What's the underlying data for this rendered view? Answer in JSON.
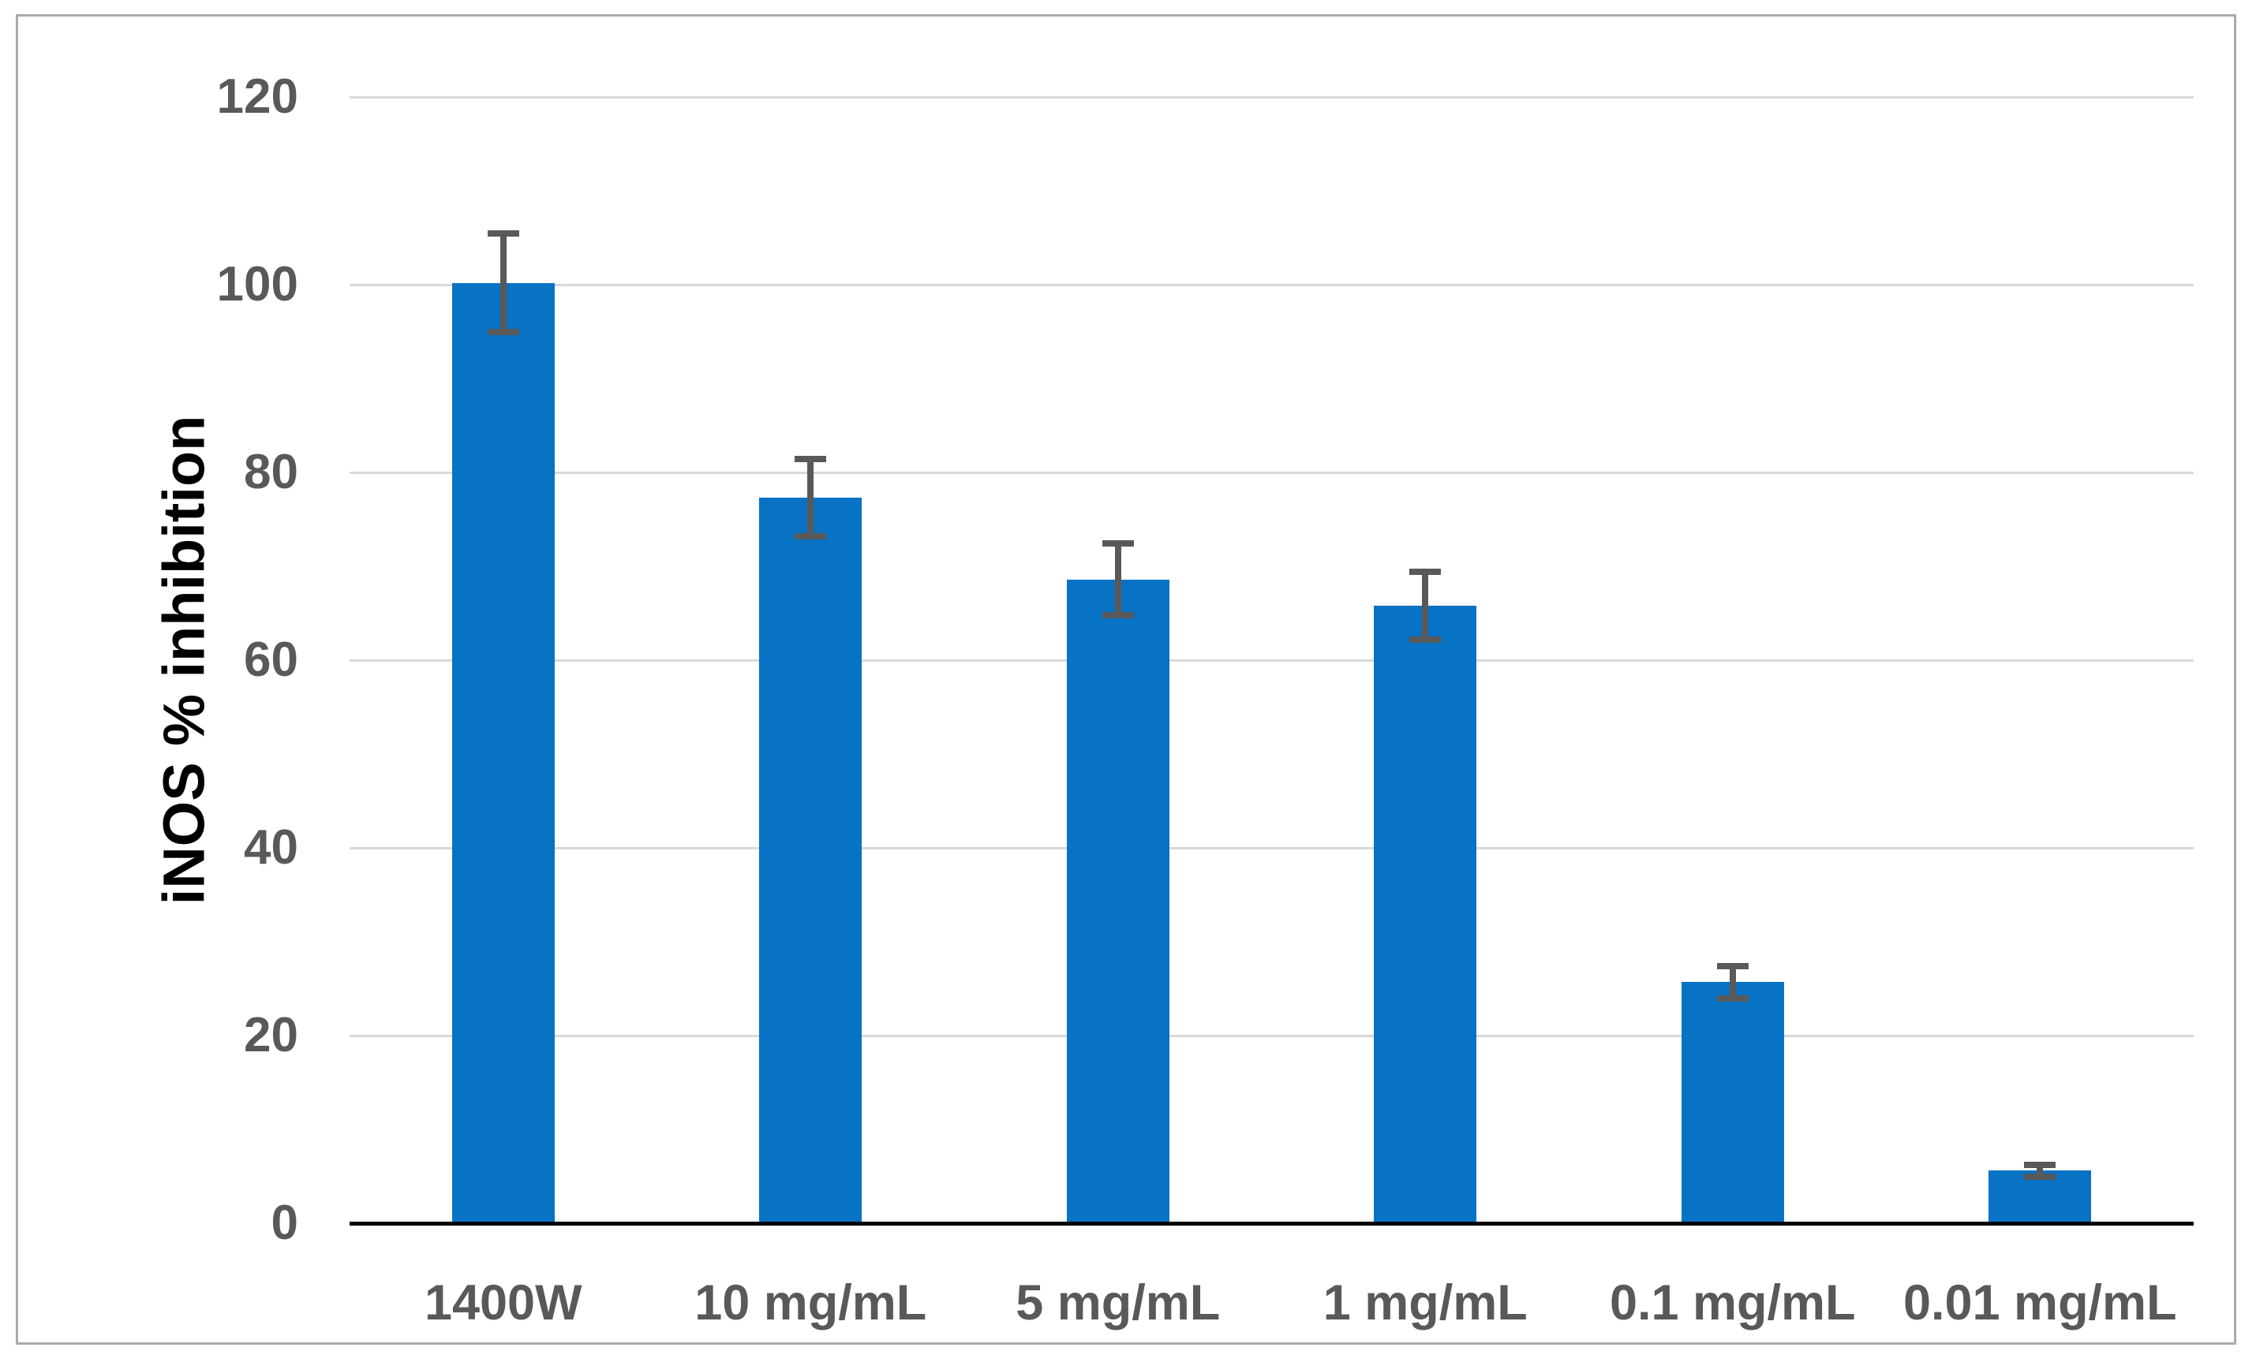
{
  "chart_data": {
    "type": "bar",
    "title": "",
    "categories": [
      "1400W",
      "10 mg/mL",
      "5 mg/mL",
      "1 mg/mL",
      "0.1 mg/mL",
      "0.01 mg/mL"
    ],
    "values": [
      100.2,
      77.3,
      68.6,
      65.8,
      25.7,
      5.6
    ],
    "error_bars": [
      4.9,
      3.8,
      3.5,
      3.3,
      1.4,
      0.3
    ],
    "ylabel": "iNOS % inhibition",
    "xlabel": "",
    "ylim": [
      0,
      120
    ],
    "yticks": [
      0,
      20,
      40,
      60,
      80,
      100,
      120
    ],
    "grid": true,
    "legend": false,
    "colors": {
      "bar": "#0872C4",
      "error_bar": "#595959",
      "gridline": "#D9D9D9",
      "axis_line": "#000000",
      "tick_label": "#595959",
      "category_label": "#595959",
      "ylabel_color": "#000000",
      "frame_border": "#ABABAB",
      "background": "#FFFFFF"
    }
  }
}
